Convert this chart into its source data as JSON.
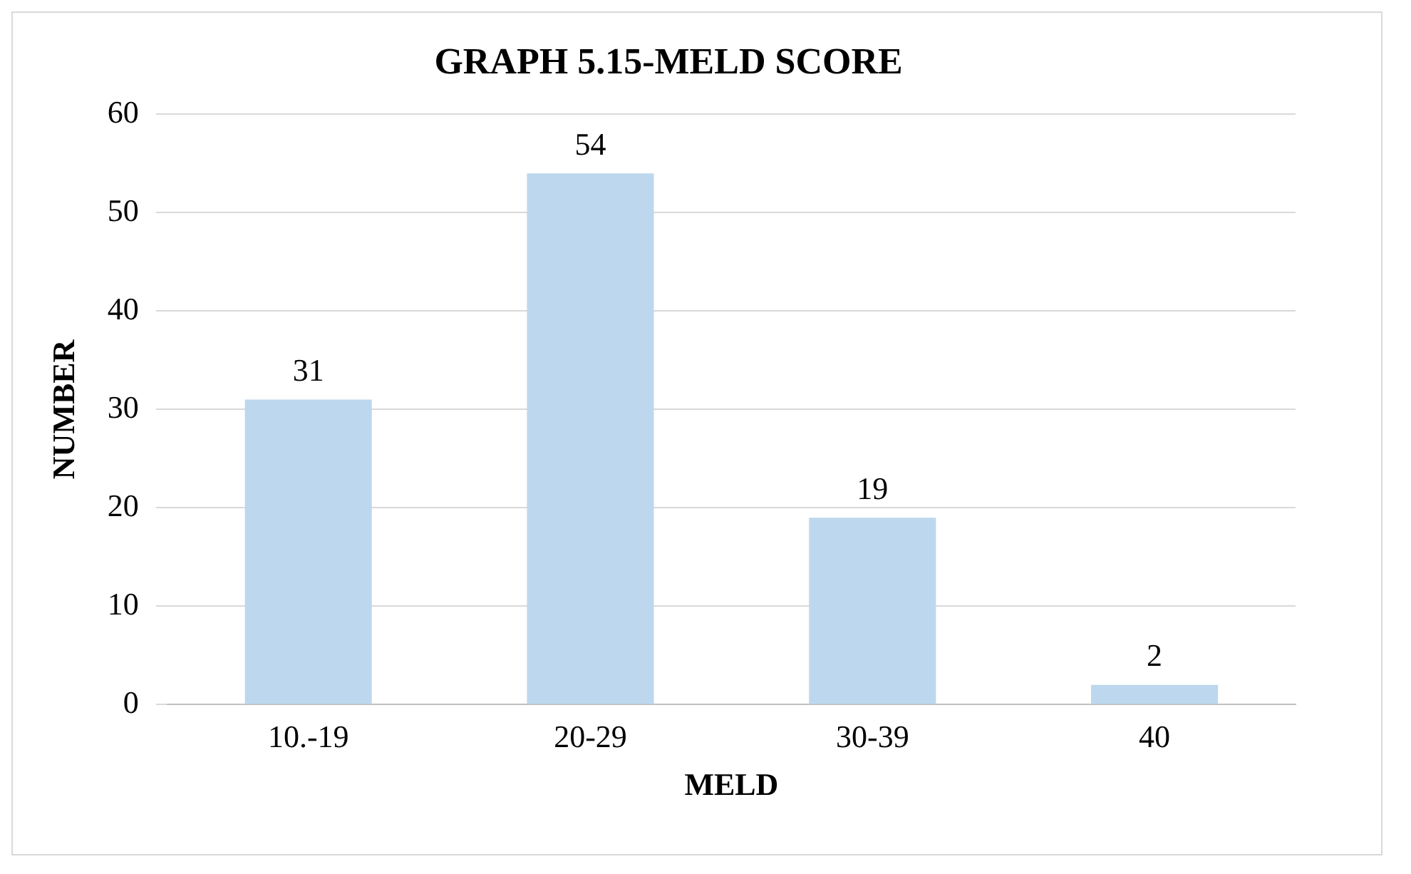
{
  "chart_data": {
    "type": "bar",
    "title": "GRAPH 5.15-MELD SCORE",
    "xlabel": "MELD",
    "ylabel": "NUMBER",
    "categories": [
      "10.-19",
      "20-29",
      "30-39",
      "40"
    ],
    "values": [
      31,
      54,
      19,
      2
    ],
    "color": "#bdd7ee",
    "ylim": [
      0,
      60
    ],
    "yticks": [
      0,
      10,
      20,
      30,
      40,
      50,
      60
    ],
    "grid": "y",
    "legend": false,
    "data_labels": true
  }
}
